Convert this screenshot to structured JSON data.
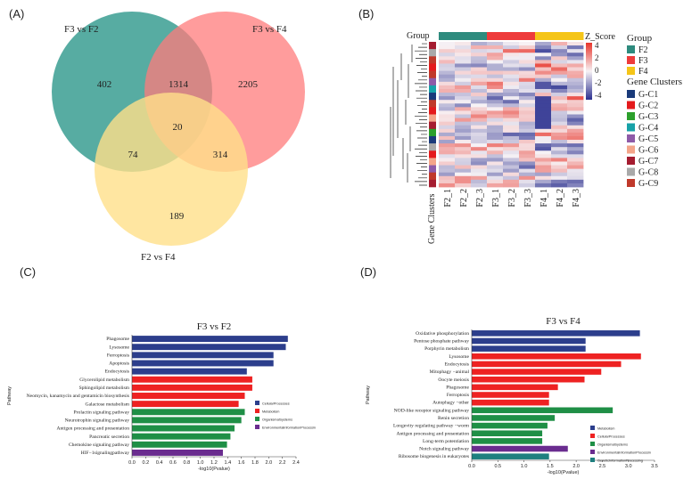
{
  "colors": {
    "f2": "#2E8B7E",
    "f3": "#EE3B3B",
    "f4": "#F5C518",
    "cellular": "#2C3E8C",
    "metabolism": "#EE2222",
    "organismal": "#1F8F46",
    "environmental": "#6A2C8F",
    "genetic": "#1E7F7F",
    "vennA": "#3A9E92",
    "vennB": "#FF7B7B",
    "vennC": "#FFE08A"
  },
  "panelA": {
    "label": "(A)",
    "sets": [
      "F3 vs F2",
      "F3 vs F4",
      "F2 vs F4"
    ],
    "regions": {
      "onlyA": "402",
      "ab": "1314",
      "onlyB": "2205",
      "abc": "20",
      "ac": "74",
      "bc": "314",
      "onlyC": "189"
    }
  },
  "panelB": {
    "label": "(B)",
    "group_label": "Group",
    "row_label": "Gene Clusters",
    "zscore_label": "Z_Score",
    "zscore_ticks": [
      "4",
      "2",
      "0",
      "-2",
      "-4"
    ],
    "columns": [
      "F2_1",
      "F2_2",
      "F2_3",
      "F3_1",
      "F3_2",
      "F3_3",
      "F4_1",
      "F4_2",
      "F4_3"
    ],
    "group_legend_title": "Group",
    "group_legend": [
      "F2",
      "F3",
      "F4"
    ],
    "cluster_legend_title": "Gene Clusters",
    "clusters": [
      {
        "name": "G-C1",
        "color": "#1A3A7A"
      },
      {
        "name": "G-C2",
        "color": "#E41A1C"
      },
      {
        "name": "G-C3",
        "color": "#2CA02C"
      },
      {
        "name": "G-C4",
        "color": "#17A2A8"
      },
      {
        "name": "G-C5",
        "color": "#8E5BA8"
      },
      {
        "name": "G-C6",
        "color": "#F4A58A"
      },
      {
        "name": "G-C7",
        "color": "#A51C30"
      },
      {
        "name": "G-C8",
        "color": "#A9A9A9"
      },
      {
        "name": "G-C9",
        "color": "#C0392B"
      }
    ]
  },
  "panelC": {
    "label": "(C)"
  },
  "panelD": {
    "label": "(D)"
  },
  "chart_data": [
    {
      "type": "bar",
      "orientation": "horizontal",
      "title": "F3 vs F2",
      "xlabel": "-log10(Pvalue)",
      "ylabel": "Pathway",
      "xlim": [
        0,
        2.4
      ],
      "xticks": [
        "0.0",
        "0.2",
        "0.4",
        "0.6",
        "0.8",
        "1.0",
        "1.2",
        "1.4",
        "1.6",
        "1.8",
        "2.0",
        "2.2",
        "2.4"
      ],
      "legend": [
        {
          "name": "CellularProcesses",
          "color": "#2C3E8C"
        },
        {
          "name": "Metabolism",
          "color": "#EE2222"
        },
        {
          "name": "OrganismalSystems",
          "color": "#1F8F46"
        },
        {
          "name": "EnvironmentalInformationProcessin",
          "color": "#6A2C8F"
        }
      ],
      "categories": [
        "Phagosome",
        "Lysosome",
        "Ferroptosis",
        "Apoptosis",
        "Endocytosis",
        "Glycerolipid metabolism",
        "Sphingolipid metabolism",
        "Neomycin, kanamycin and gentamicin biosynthesis",
        "Galactose metabolism",
        "Prolactin signaling pathway",
        "Neurotrophin signaling pathway",
        "Antigen processing and presentation",
        "Pancreatic secretion",
        "Chemokine signaling pathway",
        "HIF−1signalingpathway"
      ],
      "values": [
        2.28,
        2.25,
        2.07,
        2.07,
        1.68,
        1.76,
        1.76,
        1.65,
        1.56,
        1.65,
        1.6,
        1.5,
        1.44,
        1.39,
        1.33
      ],
      "groups": [
        0,
        0,
        0,
        0,
        0,
        1,
        1,
        1,
        1,
        2,
        2,
        2,
        2,
        2,
        3
      ]
    },
    {
      "type": "bar",
      "orientation": "horizontal",
      "title": "F3 vs F4",
      "xlabel": "-log10(Pvalue)",
      "ylabel": "Pathway",
      "xlim": [
        0,
        3.5
      ],
      "xticks": [
        "0.0",
        "0.5",
        "1.0",
        "1.5",
        "2.0",
        "2.5",
        "3.0",
        "3.5"
      ],
      "legend": [
        {
          "name": "Metabolism",
          "color": "#2C3E8C"
        },
        {
          "name": "CellularProcesses",
          "color": "#EE2222"
        },
        {
          "name": "OrganismalSystems",
          "color": "#1F8F46"
        },
        {
          "name": "EnvironmentalInformationProcessin",
          "color": "#6A2C8F"
        },
        {
          "name": "GeneticInformationProcessing",
          "color": "#1E7F7F"
        }
      ],
      "categories": [
        "Oxidative phosphorylation",
        "Pentose phosphate pathway",
        "Porphyrin metabolism",
        "Lysosome",
        "Endocytosis",
        "Mitophagy −animal",
        "Oocyte meiosis",
        "Phagosome",
        "Ferroptosis",
        "Autophagy −other",
        "NOD-like receptor signaling pathway",
        "Renin secretion",
        "Longevity regulating pathway −worm",
        "Antigen processing and presentation",
        "Long-term potentiation",
        "Notch signaling pathway",
        "Ribosome biogenesis in eukaryotes"
      ],
      "values": [
        3.22,
        2.18,
        2.18,
        3.24,
        2.86,
        2.48,
        2.16,
        1.65,
        1.48,
        1.48,
        2.7,
        1.59,
        1.45,
        1.35,
        1.35,
        1.84,
        1.48
      ],
      "groups": [
        0,
        0,
        0,
        1,
        1,
        1,
        1,
        1,
        1,
        1,
        2,
        2,
        2,
        2,
        2,
        3,
        4
      ]
    }
  ]
}
